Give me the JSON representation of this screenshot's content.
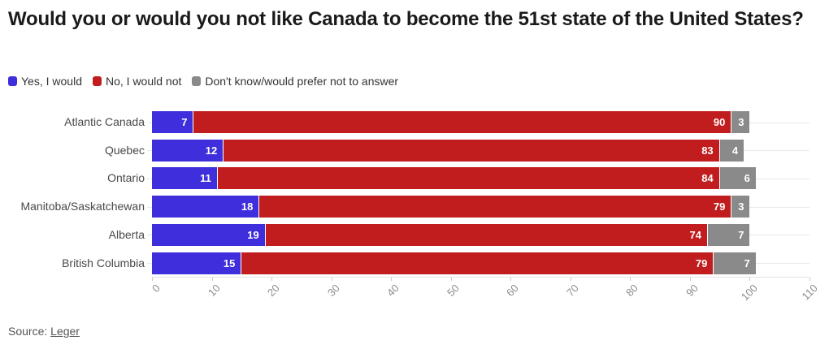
{
  "title": "Would you or would you not like Canada to become the 51st state of the United States?",
  "source": {
    "prefix": "Source: ",
    "link_label": "Leger"
  },
  "colors": {
    "yes_blue": "#3F2EDB",
    "no_red": "#C11D1E",
    "dont_know_gray": "#8A8A8A",
    "title_text": "#1a1a1a",
    "category_text": "#494949",
    "axis_text": "#8c8c8c",
    "row_line": "#e8e8e8",
    "value_text": "#ffffff"
  },
  "chart_data": {
    "type": "bar",
    "stacked": true,
    "orientation": "horizontal",
    "title": "Would you or would you not like Canada to become the 51st state of the United States?",
    "categories": [
      "Atlantic Canada",
      "Quebec",
      "Ontario",
      "Manitoba/Saskatchewan",
      "Alberta",
      "British Columbia"
    ],
    "series": [
      {
        "name": "Yes, I would",
        "color": "#3F2EDB",
        "values": [
          7,
          12,
          11,
          18,
          19,
          15
        ]
      },
      {
        "name": "No, I would not",
        "color": "#C11D1E",
        "values": [
          90,
          83,
          84,
          79,
          74,
          79
        ]
      },
      {
        "name": "Don't know/would prefer not to answer",
        "color": "#8A8A8A",
        "values": [
          3,
          4,
          6,
          3,
          7,
          7
        ]
      }
    ],
    "xlabel": "",
    "ylabel": "",
    "xlim": [
      0,
      110
    ],
    "x_ticks": [
      0,
      10,
      20,
      30,
      40,
      50,
      60,
      70,
      80,
      90,
      100,
      110
    ],
    "grid": "horizontal-row-lines",
    "legend_position": "top",
    "value_labels": "inside-end"
  }
}
